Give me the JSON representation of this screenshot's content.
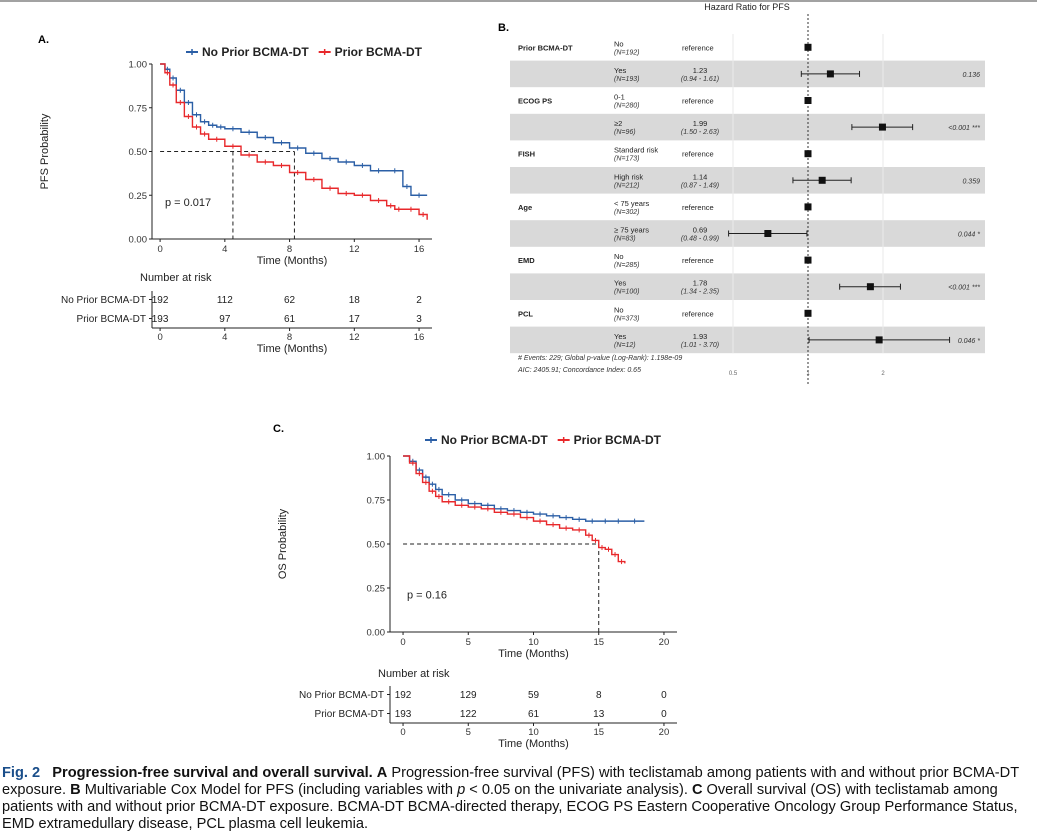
{
  "chart_data": [
    {
      "panel": "A.",
      "type": "line",
      "subtype": "kaplan-meier",
      "xlabel": "Time (Months)",
      "ylabel": "PFS Probability",
      "xlim": [
        -0.5,
        16.8
      ],
      "ylim": [
        0,
        1
      ],
      "xticks": [
        "0",
        "4",
        "8",
        "12",
        "16"
      ],
      "yticks": [
        "0.00",
        "0.25",
        "0.50",
        "0.75",
        "1.00"
      ],
      "pvalue": "p = 0.017",
      "median_lines": [
        4.5,
        8.3
      ],
      "series": [
        {
          "name": "No Prior BCMA-DT",
          "color": "#2b5fa6",
          "x": [
            0,
            0.3,
            0.6,
            1,
            1.5,
            2,
            2.5,
            3,
            3.5,
            4,
            5,
            6,
            7,
            8,
            9,
            10,
            11,
            12,
            13,
            14,
            15,
            15.5,
            16.5
          ],
          "y": [
            1,
            0.97,
            0.92,
            0.85,
            0.78,
            0.71,
            0.67,
            0.65,
            0.64,
            0.63,
            0.61,
            0.58,
            0.55,
            0.52,
            0.49,
            0.46,
            0.44,
            0.42,
            0.39,
            0.39,
            0.3,
            0.25,
            0.25
          ]
        },
        {
          "name": "Prior BCMA-DT",
          "color": "#e8282b",
          "x": [
            0,
            0.3,
            0.6,
            1,
            1.5,
            2,
            2.5,
            3,
            4,
            5,
            6,
            7,
            8,
            9,
            10,
            11,
            12,
            13,
            14,
            14.5,
            15,
            16,
            16.5
          ],
          "y": [
            1,
            0.95,
            0.88,
            0.78,
            0.7,
            0.64,
            0.6,
            0.57,
            0.53,
            0.48,
            0.44,
            0.42,
            0.38,
            0.34,
            0.29,
            0.26,
            0.25,
            0.22,
            0.19,
            0.17,
            0.17,
            0.14,
            0.11
          ]
        }
      ],
      "risk_table": {
        "title": "Number at risk",
        "xticks": [
          "0",
          "4",
          "8",
          "12",
          "16"
        ],
        "rows": [
          {
            "name": "No Prior BCMA-DT",
            "color": "#2b5fa6",
            "values": [
              "192",
              "112",
              "62",
              "18",
              "2"
            ]
          },
          {
            "name": "Prior BCMA-DT",
            "color": "#e8282b",
            "values": [
              "193",
              "97",
              "61",
              "17",
              "3"
            ]
          }
        ]
      }
    },
    {
      "panel": "B.",
      "type": "forest",
      "title": "Hazard Ratio for PFS",
      "xticks": [
        "0.5",
        "1",
        "2"
      ],
      "groups": [
        {
          "label": "Prior BCMA-DT",
          "rows": [
            {
              "level": "No",
              "n": "(N=192)",
              "est": "reference",
              "hr": 1,
              "p": ""
            },
            {
              "level": "Yes",
              "n": "(N=193)",
              "est": "1.23",
              "ci": "(0.94 - 1.61)",
              "hr": 1.23,
              "lo": 0.94,
              "hi": 1.61,
              "p": "0.136"
            }
          ]
        },
        {
          "label": "ECOG PS",
          "rows": [
            {
              "level": "0-1",
              "n": "(N=280)",
              "est": "reference",
              "hr": 1,
              "p": ""
            },
            {
              "level": "≥2",
              "n": "(N=96)",
              "est": "1.99",
              "ci": "(1.50 - 2.63)",
              "hr": 1.99,
              "lo": 1.5,
              "hi": 2.63,
              "p": "<0.001 ***"
            }
          ]
        },
        {
          "label": "FISH",
          "rows": [
            {
              "level": "Standard risk",
              "n": "(N=173)",
              "est": "reference",
              "hr": 1,
              "p": ""
            },
            {
              "level": "High risk",
              "n": "(N=212)",
              "est": "1.14",
              "ci": "(0.87 - 1.49)",
              "hr": 1.14,
              "lo": 0.87,
              "hi": 1.49,
              "p": "0.359"
            }
          ]
        },
        {
          "label": "Age",
          "rows": [
            {
              "level": "< 75 years",
              "n": "(N=302)",
              "est": "reference",
              "hr": 1,
              "p": ""
            },
            {
              "level": "≥ 75 years",
              "n": "(N=83)",
              "est": "0.69",
              "ci": "(0.48 - 0.99)",
              "hr": 0.69,
              "lo": 0.48,
              "hi": 0.99,
              "p": "0.044 *"
            }
          ]
        },
        {
          "label": "EMD",
          "rows": [
            {
              "level": "No",
              "n": "(N=285)",
              "est": "reference",
              "hr": 1,
              "p": ""
            },
            {
              "level": "Yes",
              "n": "(N=100)",
              "est": "1.78",
              "ci": "(1.34 - 2.35)",
              "hr": 1.78,
              "lo": 1.34,
              "hi": 2.35,
              "p": "<0.001 ***"
            }
          ]
        },
        {
          "label": "PCL",
          "rows": [
            {
              "level": "No",
              "n": "(N=373)",
              "est": "reference",
              "hr": 1,
              "p": ""
            },
            {
              "level": "Yes",
              "n": "(N=12)",
              "est": "1.93",
              "ci": "(1.01 - 3.70)",
              "hr": 1.93,
              "lo": 1.01,
              "hi": 3.7,
              "p": "0.046 *"
            }
          ]
        }
      ],
      "footnote1": "# Events: 229; Global p-value (Log-Rank): 1.198e-09",
      "footnote2": "AIC: 2405.91; Concordance Index: 0.65"
    },
    {
      "panel": "C.",
      "type": "line",
      "subtype": "kaplan-meier",
      "xlabel": "Time (Months)",
      "ylabel": "OS Probability",
      "xlim": [
        -1,
        21
      ],
      "ylim": [
        0,
        1
      ],
      "xticks": [
        "0",
        "5",
        "10",
        "15",
        "20"
      ],
      "yticks": [
        "0.00",
        "0.25",
        "0.50",
        "0.75",
        "1.00"
      ],
      "pvalue": "p = 0.16",
      "median_lines": [
        15
      ],
      "series": [
        {
          "name": "No Prior BCMA-DT",
          "color": "#2b5fa6",
          "x": [
            0,
            0.5,
            1,
            1.5,
            2,
            2.5,
            3,
            4,
            5,
            6,
            7,
            8,
            9,
            10,
            11,
            12,
            13,
            14,
            15,
            16,
            17,
            18.5
          ],
          "y": [
            1,
            0.97,
            0.92,
            0.88,
            0.84,
            0.81,
            0.78,
            0.75,
            0.73,
            0.72,
            0.7,
            0.69,
            0.68,
            0.67,
            0.66,
            0.65,
            0.64,
            0.63,
            0.63,
            0.63,
            0.63,
            0.63
          ]
        },
        {
          "name": "Prior BCMA-DT",
          "color": "#e8282b",
          "x": [
            0,
            0.5,
            1,
            1.5,
            2,
            2.5,
            3,
            4,
            5,
            6,
            7,
            8,
            9,
            10,
            11,
            12,
            13,
            14,
            14.5,
            15,
            15.5,
            16,
            16.5,
            17
          ],
          "y": [
            1,
            0.96,
            0.9,
            0.85,
            0.8,
            0.77,
            0.74,
            0.72,
            0.71,
            0.7,
            0.68,
            0.67,
            0.65,
            0.63,
            0.61,
            0.59,
            0.58,
            0.55,
            0.52,
            0.48,
            0.47,
            0.44,
            0.4,
            0.39
          ]
        }
      ],
      "risk_table": {
        "title": "Number at risk",
        "xticks": [
          "0",
          "5",
          "10",
          "15",
          "20"
        ],
        "rows": [
          {
            "name": "No Prior BCMA-DT",
            "color": "#2b5fa6",
            "values": [
              "192",
              "129",
              "59",
              "8",
              "0"
            ]
          },
          {
            "name": "Prior BCMA-DT",
            "color": "#e8282b",
            "values": [
              "193",
              "122",
              "61",
              "13",
              "0"
            ]
          }
        ]
      }
    }
  ],
  "caption": {
    "fig": "Fig. 2",
    "title": "Progression-free survival and overall survival.",
    "a_letter": "A",
    "a_text": " Progression-free survival (PFS) with teclistamab among patients with and without prior BCMA-DT exposure. ",
    "b_letter": "B",
    "b_text": " Multivariable Cox Model for PFS (including variables with ",
    "b_p": "p",
    "b_text2": " < 0.05 on the univariate analysis). ",
    "c_letter": "C",
    "c_text": " Overall survival (OS) with teclistamab among patients with and without prior BCMA-DT exposure. BCMA-DT BCMA-directed therapy, ECOG PS Eastern Cooperative Oncology Group Performance Status, EMD extramedullary disease, PCL plasma cell leukemia."
  }
}
